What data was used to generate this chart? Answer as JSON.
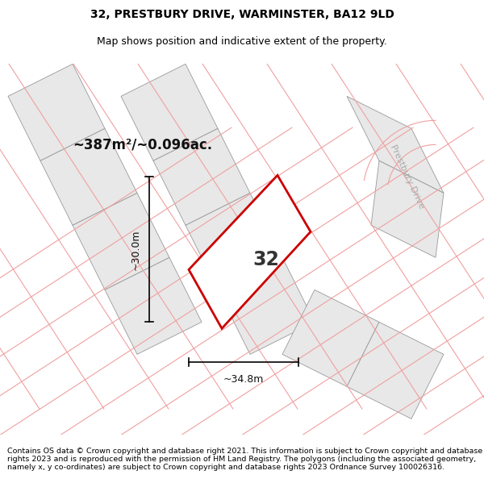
{
  "title": "32, PRESTBURY DRIVE, WARMINSTER, BA12 9LD",
  "subtitle": "Map shows position and indicative extent of the property.",
  "footer": "Contains OS data © Crown copyright and database right 2021. This information is subject to Crown copyright and database rights 2023 and is reproduced with the permission of HM Land Registry. The polygons (including the associated geometry, namely x, y co-ordinates) are subject to Crown copyright and database rights 2023 Ordnance Survey 100026316.",
  "area_text": "~387m²/~0.096ac.",
  "width_label": "~34.8m",
  "height_label": "~30.0m",
  "property_number": "32",
  "background_color": "#ffffff",
  "map_bg_color": "#ffffff",
  "plot_outline_color": "#cc0000",
  "road_label": "Prestbury Drive",
  "neighbor_fill": "#e8e8e8",
  "neighbor_stroke": "#999999",
  "road_line_color": "#f0a0a0",
  "title_fontsize": 10,
  "subtitle_fontsize": 9,
  "footer_fontsize": 6.8
}
